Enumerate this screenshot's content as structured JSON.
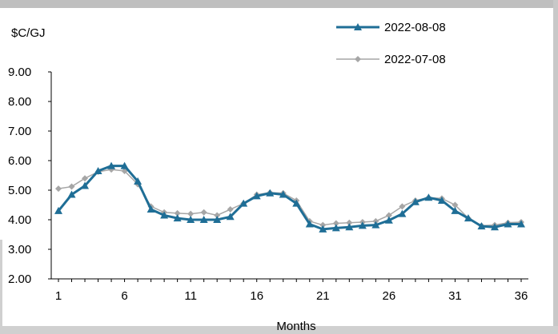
{
  "chart_data": {
    "type": "line",
    "ylabel": "$C/GJ",
    "xlabel": "Months",
    "ylim": [
      2.0,
      9.0
    ],
    "y_ticks": [
      "2.00",
      "3.00",
      "4.00",
      "5.00",
      "6.00",
      "7.00",
      "8.00",
      "9.00"
    ],
    "x_range": [
      1,
      36
    ],
    "x_ticks": [
      "1",
      "6",
      "11",
      "16",
      "21",
      "26",
      "31",
      "36"
    ],
    "grid": false,
    "legend_position": "top-right",
    "series": [
      {
        "name": "2022-08-08",
        "color": "#1f6e96",
        "marker": "triangle",
        "x": [
          1,
          2,
          3,
          4,
          5,
          6,
          7,
          8,
          9,
          10,
          11,
          12,
          13,
          14,
          15,
          16,
          17,
          18,
          19,
          20,
          21,
          22,
          23,
          24,
          25,
          26,
          27,
          28,
          29,
          30,
          31,
          32,
          33,
          34,
          35,
          36
        ],
        "values": [
          4.3,
          4.85,
          5.15,
          5.65,
          5.82,
          5.82,
          5.3,
          4.35,
          4.15,
          4.05,
          4.0,
          4.0,
          4.0,
          4.1,
          4.55,
          4.8,
          4.9,
          4.85,
          4.55,
          3.85,
          3.68,
          3.72,
          3.75,
          3.8,
          3.82,
          3.98,
          4.2,
          4.6,
          4.75,
          4.65,
          4.3,
          4.05,
          3.78,
          3.75,
          3.85,
          3.85
        ]
      },
      {
        "name": "2022-07-08",
        "color": "#a6a6a6",
        "marker": "diamond",
        "x": [
          1,
          2,
          3,
          4,
          5,
          6,
          7,
          8,
          9,
          10,
          11,
          12,
          13,
          14,
          15,
          16,
          17,
          18,
          19,
          20,
          21,
          22,
          23,
          24,
          25,
          26,
          27,
          28,
          29,
          30,
          31,
          32,
          33,
          34,
          35,
          36
        ],
        "values": [
          5.05,
          5.12,
          5.4,
          5.62,
          5.7,
          5.65,
          5.2,
          4.45,
          4.25,
          4.22,
          4.2,
          4.25,
          4.15,
          4.35,
          4.55,
          4.85,
          4.92,
          4.9,
          4.65,
          3.95,
          3.82,
          3.88,
          3.9,
          3.92,
          3.95,
          4.15,
          4.45,
          4.65,
          4.75,
          4.72,
          4.5,
          4.05,
          3.8,
          3.82,
          3.9,
          3.92
        ]
      }
    ]
  }
}
